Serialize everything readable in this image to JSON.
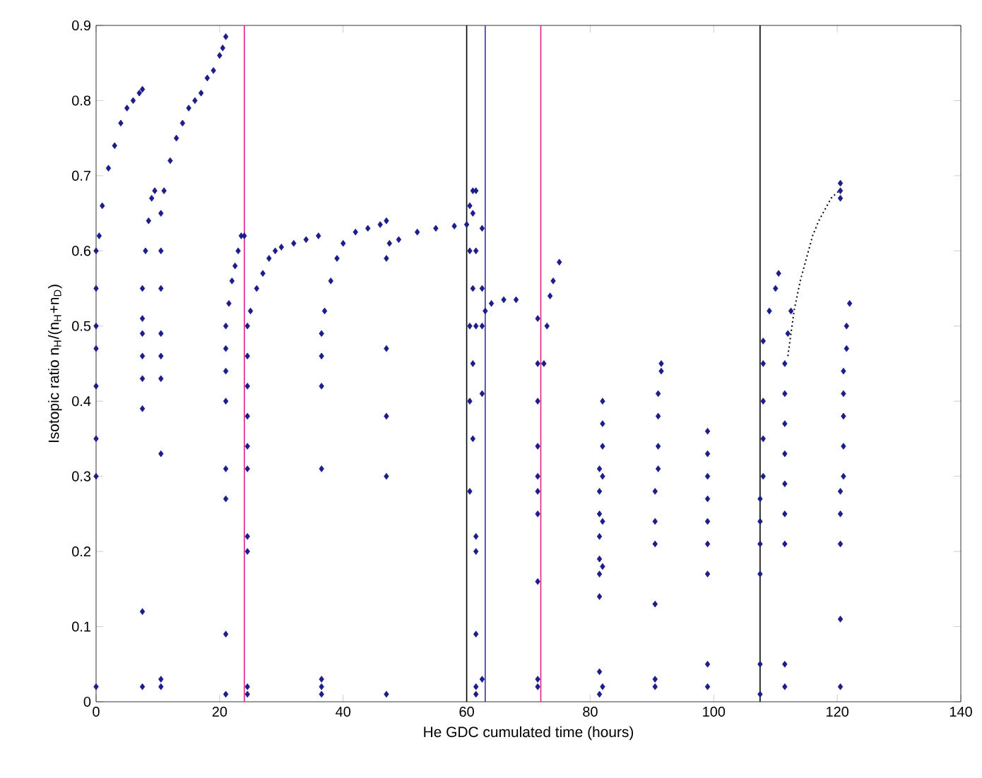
{
  "chart_data": {
    "type": "scatter",
    "xlabel": "He GDC cumulated time (hours)",
    "ylabel": "Isotopic ratio n$_{H}$/(n$_{H}$+n$_{D}$)",
    "xlim": [
      0,
      140
    ],
    "ylim": [
      0,
      0.9
    ],
    "xticks": [
      0,
      20,
      40,
      60,
      80,
      100,
      120,
      140
    ],
    "yticks": [
      0,
      0.1,
      0.2,
      0.3,
      0.4,
      0.5,
      0.6,
      0.7,
      0.8,
      0.9
    ],
    "marker": "diamond",
    "series": [
      {
        "color": "#1c1c8a",
        "x": [
          0,
          0,
          0,
          0,
          0,
          0,
          0,
          0,
          0.5,
          1,
          2,
          3,
          4,
          5,
          6,
          7,
          7.5
        ],
        "values": [
          0.02,
          0.3,
          0.35,
          0.42,
          0.47,
          0.5,
          0.55,
          0.6,
          0.62,
          0.66,
          0.71,
          0.74,
          0.77,
          0.79,
          0.8,
          0.81,
          0.815
        ]
      },
      {
        "color": "#1c1c8a",
        "x": [
          7.5,
          7.5,
          7.5,
          7.5,
          7.5,
          7.5,
          7.5,
          7.5,
          8,
          8.5,
          9,
          9.5
        ],
        "values": [
          0.02,
          0.12,
          0.39,
          0.43,
          0.46,
          0.49,
          0.51,
          0.55,
          0.6,
          0.64,
          0.67,
          0.68
        ]
      },
      {
        "color": "#1c1c8a",
        "x": [
          10.5,
          10.5,
          10.5,
          10.5,
          10.5,
          10.5,
          10.5,
          10.5,
          10.5,
          11,
          12,
          13,
          14,
          15,
          16,
          17,
          18,
          19,
          20,
          20.5,
          21
        ],
        "values": [
          0.02,
          0.03,
          0.33,
          0.43,
          0.46,
          0.49,
          0.55,
          0.6,
          0.65,
          0.68,
          0.72,
          0.75,
          0.77,
          0.79,
          0.8,
          0.81,
          0.83,
          0.84,
          0.86,
          0.87,
          0.885
        ]
      },
      {
        "color": "#1c1c8a",
        "x": [
          21,
          21,
          21,
          21,
          21,
          21,
          21,
          21,
          21.5,
          22,
          22.5,
          23,
          23.5,
          24
        ],
        "values": [
          0.01,
          0.09,
          0.27,
          0.31,
          0.4,
          0.44,
          0.47,
          0.5,
          0.53,
          0.56,
          0.58,
          0.6,
          0.62,
          0.62
        ]
      },
      {
        "color": "#1c1c8a",
        "x": [
          24.5,
          24.5,
          24.5,
          24.5,
          24.5,
          24.5,
          24.5,
          24.5,
          24.5,
          24.5,
          25,
          26,
          27,
          28,
          29,
          30,
          32,
          34,
          36
        ],
        "values": [
          0.01,
          0.02,
          0.2,
          0.22,
          0.31,
          0.34,
          0.38,
          0.42,
          0.46,
          0.5,
          0.52,
          0.55,
          0.57,
          0.59,
          0.6,
          0.605,
          0.61,
          0.615,
          0.62
        ]
      },
      {
        "color": "#1c1c8a",
        "x": [
          36.5,
          36.5,
          36.5,
          36.5,
          36.5,
          36.5,
          36.5,
          37,
          38,
          39,
          40,
          42,
          44,
          46,
          47
        ],
        "values": [
          0.01,
          0.02,
          0.03,
          0.31,
          0.42,
          0.46,
          0.49,
          0.52,
          0.56,
          0.59,
          0.61,
          0.625,
          0.63,
          0.635,
          0.64
        ]
      },
      {
        "color": "#1c1c8a",
        "x": [
          47,
          47,
          47,
          47,
          47,
          47.5,
          49,
          52,
          55,
          58,
          60
        ],
        "values": [
          0.01,
          0.3,
          0.38,
          0.47,
          0.59,
          0.61,
          0.615,
          0.625,
          0.63,
          0.633,
          0.635
        ]
      },
      {
        "color": "#1c1c8a",
        "x": [
          60.5,
          60.5,
          60.5,
          60.5,
          60.5,
          61,
          61,
          61,
          61,
          61,
          61.5,
          61.5,
          61.5,
          61.5,
          61.5,
          61.5,
          61.5,
          61.5,
          62.5,
          62.5,
          62.5,
          62.5,
          62.5,
          63,
          64,
          66,
          68
        ],
        "values": [
          0.28,
          0.4,
          0.5,
          0.6,
          0.66,
          0.35,
          0.45,
          0.55,
          0.65,
          0.68,
          0.01,
          0.02,
          0.09,
          0.2,
          0.22,
          0.5,
          0.6,
          0.68,
          0.03,
          0.41,
          0.5,
          0.55,
          0.63,
          0.52,
          0.53,
          0.535,
          0.535
        ]
      },
      {
        "color": "#1c1c8a",
        "x": [
          71.5,
          71.5,
          71.5,
          71.5,
          71.5,
          71.5,
          71.5,
          71.5,
          71.5,
          71.5,
          72.5,
          73,
          73.5,
          74,
          75
        ],
        "values": [
          0.02,
          0.03,
          0.16,
          0.25,
          0.28,
          0.3,
          0.34,
          0.4,
          0.45,
          0.51,
          0.45,
          0.5,
          0.54,
          0.56,
          0.585
        ]
      },
      {
        "color": "#1c1c8a",
        "x": [
          81.5,
          81.5,
          81.5,
          81.5,
          81.5,
          81.5,
          81.5,
          81.5,
          81.5,
          82,
          82,
          82,
          82,
          82,
          82,
          82
        ],
        "values": [
          0.01,
          0.04,
          0.14,
          0.17,
          0.19,
          0.22,
          0.25,
          0.28,
          0.31,
          0.02,
          0.18,
          0.24,
          0.3,
          0.34,
          0.37,
          0.4
        ]
      },
      {
        "color": "#1c1c8a",
        "x": [
          90.5,
          90.5,
          90.5,
          90.5,
          90.5,
          90.5,
          91,
          91,
          91,
          91,
          91.5,
          91.5
        ],
        "values": [
          0.02,
          0.03,
          0.13,
          0.21,
          0.24,
          0.28,
          0.31,
          0.34,
          0.38,
          0.41,
          0.44,
          0.45
        ]
      },
      {
        "color": "#1c1c8a",
        "x": [
          99,
          99,
          99,
          99,
          99,
          99,
          99,
          99,
          99
        ],
        "values": [
          0.02,
          0.05,
          0.17,
          0.21,
          0.24,
          0.27,
          0.3,
          0.33,
          0.36
        ]
      },
      {
        "color": "#1c1c8a",
        "x": [
          107.5,
          107.5,
          107.5,
          107.5,
          107.5,
          107.5,
          108,
          108,
          108,
          108,
          108,
          109,
          110,
          110.5
        ],
        "values": [
          0.01,
          0.05,
          0.17,
          0.21,
          0.24,
          0.27,
          0.3,
          0.35,
          0.4,
          0.45,
          0.48,
          0.52,
          0.55,
          0.57
        ]
      },
      {
        "color": "#1c1c8a",
        "x": [
          111.5,
          111.5,
          111.5,
          111.5,
          111.5,
          111.5,
          111.5,
          111.5,
          111.5,
          112,
          112.5
        ],
        "values": [
          0.02,
          0.05,
          0.21,
          0.25,
          0.29,
          0.33,
          0.37,
          0.41,
          0.45,
          0.49,
          0.52
        ]
      },
      {
        "color": "#1c1c8a",
        "x": [
          120.5,
          120.5,
          120.5,
          120.5,
          120.5,
          120.5,
          120.5,
          120.5,
          121,
          121,
          121,
          121,
          121,
          121.5,
          121.5,
          122
        ],
        "values": [
          0.02,
          0.11,
          0.21,
          0.25,
          0.28,
          0.67,
          0.68,
          0.69,
          0.3,
          0.34,
          0.38,
          0.41,
          0.44,
          0.47,
          0.5,
          0.53
        ]
      },
      {
        "type": "line",
        "line_style": "dotted",
        "marker": "none",
        "color": "#000000",
        "x": [
          112,
          113,
          114,
          115,
          116,
          117,
          118,
          119,
          120.3
        ],
        "values": [
          0.46,
          0.52,
          0.56,
          0.59,
          0.62,
          0.64,
          0.655,
          0.67,
          0.68
        ]
      }
    ],
    "ref_lines": [
      {
        "axis": "x",
        "value": 24,
        "color": "#e0218a"
      },
      {
        "axis": "x",
        "value": 60,
        "color": "#000000"
      },
      {
        "axis": "x",
        "value": 63,
        "color": "#3333aa"
      },
      {
        "axis": "x",
        "value": 72,
        "color": "#e0218a"
      },
      {
        "axis": "x",
        "value": 107.5,
        "color": "#000000"
      }
    ]
  }
}
